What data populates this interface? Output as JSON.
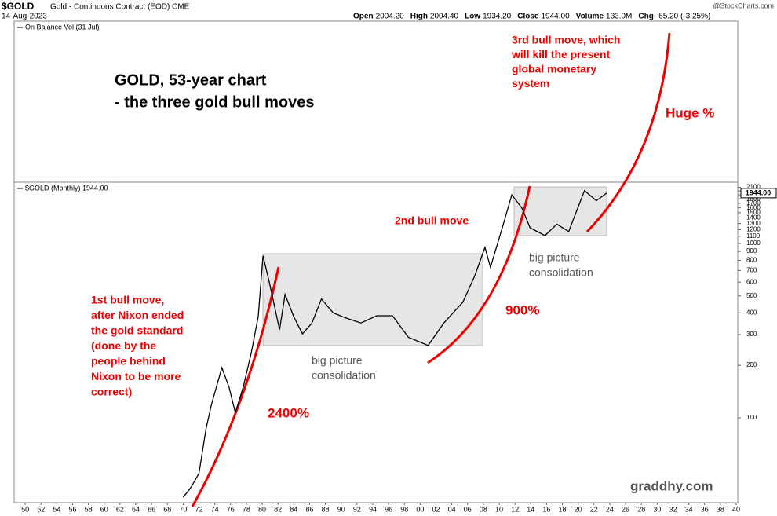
{
  "chart_data": {
    "type": "line",
    "header": {
      "symbol": "$GOLD",
      "name": "Gold - Continuous Contract (EOD) CME",
      "date": "14-Aug-2023",
      "source": "@StockCharts.com",
      "stats": [
        {
          "label": "Open",
          "value": "2004.20"
        },
        {
          "label": "High",
          "value": "2004.40"
        },
        {
          "label": "Low",
          "value": "1934.20"
        },
        {
          "label": "Close",
          "value": "1944.00"
        },
        {
          "label": "Volume",
          "value": "133.0M"
        },
        {
          "label": "Chg",
          "value": "-65.20 (-3.25%)"
        }
      ]
    },
    "indicator_label": "On Balance Vol (31 Jul)",
    "last_value_label": "1944.00",
    "series": [
      {
        "name": "$GOLD (Monthly) 1944.00",
        "color": "#000000",
        "x": [
          1970.0,
          1971.0,
          1972.0,
          1972.9,
          1973.6,
          1974.9,
          1975.8,
          1976.6,
          1977.6,
          1978.6,
          1979.5,
          1980.1,
          1980.9,
          1982.2,
          1982.9,
          1984.0,
          1985.1,
          1986.3,
          1987.5,
          1989.0,
          1990.5,
          1992.5,
          1994.5,
          1996.5,
          1998.5,
          2001.0,
          2003.0,
          2005.4,
          2006.9,
          2008.2,
          2008.9,
          2010.4,
          2011.6,
          2012.9,
          2013.9,
          2015.8,
          2017.3,
          2018.8,
          2020.8,
          2022.3,
          2023.6
        ],
        "values": [
          35,
          40,
          48,
          87,
          120,
          194,
          150,
          107,
          150,
          234,
          380,
          850,
          600,
          320,
          510,
          380,
          303,
          350,
          480,
          400,
          375,
          350,
          385,
          385,
          290,
          260,
          350,
          460,
          650,
          950,
          730,
          1230,
          1900,
          1590,
          1230,
          1110,
          1290,
          1170,
          2010,
          1760,
          1944
        ]
      }
    ],
    "xlim": [
      1948.6,
      2040.2
    ],
    "ylim": [
      32.6,
      2245
    ],
    "log_scale": true,
    "yticks": [
      100,
      200,
      300,
      400,
      500,
      600,
      700,
      800,
      900,
      1000,
      1100,
      1200,
      1300,
      1400,
      1500,
      1600,
      1700,
      1800,
      1900,
      2000,
      2100
    ],
    "xticks": [
      {
        "value": 1950,
        "label": "50"
      },
      {
        "value": 1952,
        "label": "52"
      },
      {
        "value": 1954,
        "label": "54"
      },
      {
        "value": 1956,
        "label": "56"
      },
      {
        "value": 1958,
        "label": "58"
      },
      {
        "value": 1960,
        "label": "60"
      },
      {
        "value": 1962,
        "label": "62"
      },
      {
        "value": 1964,
        "label": "64"
      },
      {
        "value": 1966,
        "label": "66"
      },
      {
        "value": 1968,
        "label": "68"
      },
      {
        "value": 1970,
        "label": "70"
      },
      {
        "value": 1972,
        "label": "72"
      },
      {
        "value": 1974,
        "label": "74"
      },
      {
        "value": 1976,
        "label": "76"
      },
      {
        "value": 1978,
        "label": "78"
      },
      {
        "value": 1980,
        "label": "80"
      },
      {
        "value": 1982,
        "label": "82"
      },
      {
        "value": 1984,
        "label": "84"
      },
      {
        "value": 1986,
        "label": "86"
      },
      {
        "value": 1988,
        "label": "88"
      },
      {
        "value": 1990,
        "label": "90"
      },
      {
        "value": 1992,
        "label": "92"
      },
      {
        "value": 1994,
        "label": "94"
      },
      {
        "value": 1996,
        "label": "96"
      },
      {
        "value": 1998,
        "label": "98"
      },
      {
        "value": 2000,
        "label": "00"
      },
      {
        "value": 2002,
        "label": "02"
      },
      {
        "value": 2004,
        "label": "04"
      },
      {
        "value": 2006,
        "label": "06"
      },
      {
        "value": 2008,
        "label": "08"
      },
      {
        "value": 2010,
        "label": "10"
      },
      {
        "value": 2012,
        "label": "12"
      },
      {
        "value": 2014,
        "label": "14"
      },
      {
        "value": 2016,
        "label": "16"
      },
      {
        "value": 2018,
        "label": "18"
      },
      {
        "value": 2020,
        "label": "20"
      },
      {
        "value": 2022,
        "label": "22"
      },
      {
        "value": 2024,
        "label": "24"
      },
      {
        "value": 2026,
        "label": "26"
      },
      {
        "value": 2028,
        "label": "28"
      },
      {
        "value": 2030,
        "label": "30"
      },
      {
        "value": 2032,
        "label": "32"
      },
      {
        "value": 2034,
        "label": "34"
      },
      {
        "value": 2036,
        "label": "36"
      },
      {
        "value": 2038,
        "label": "38"
      },
      {
        "value": 2040,
        "label": "40"
      }
    ],
    "annotations": [
      {
        "lines": [
          "GOLD, 53-year chart",
          "- the three gold bull moves"
        ]
      },
      {
        "lines": [
          "1st bull move,",
          "after Nixon ended",
          "the gold standard",
          "(done by the",
          "people behind",
          "Nixon to be more",
          "correct)"
        ]
      },
      {
        "lines": [
          "2400%"
        ]
      },
      {
        "lines": [
          "big picture",
          "consolidation"
        ]
      },
      {
        "lines": [
          "2nd bull move"
        ]
      },
      {
        "lines": [
          "900%"
        ]
      },
      {
        "lines": [
          "big picture",
          "consolidation"
        ]
      },
      {
        "lines": [
          "3rd bull move, which",
          "will kill the present",
          "global monetary",
          "system"
        ]
      },
      {
        "lines": [
          "Huge %"
        ]
      },
      {
        "lines": [
          "graddhy.com"
        ]
      }
    ]
  }
}
